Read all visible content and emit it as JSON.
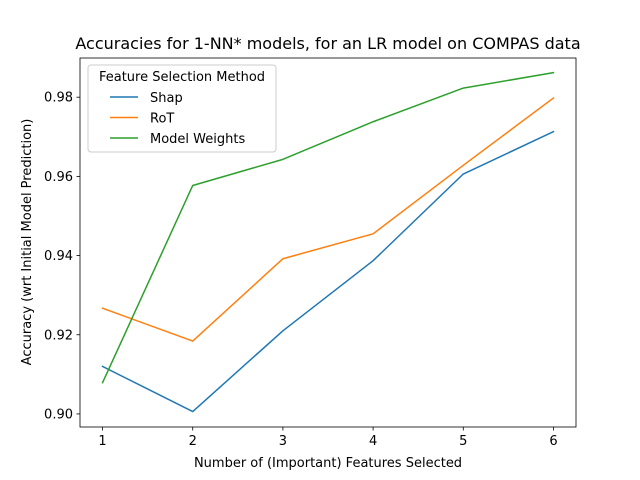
{
  "chart_data": {
    "type": "line",
    "title": "Accuracies for 1-NN* models, for an LR model on COMPAS data",
    "xlabel": "Number of (Important) Features Selected",
    "ylabel": "Accuracy (wrt Initial Model Prediction)",
    "x": [
      1,
      2,
      3,
      4,
      5,
      6
    ],
    "xticks": [
      "1",
      "2",
      "3",
      "4",
      "5",
      "6"
    ],
    "yticks": [
      0.9,
      0.92,
      0.94,
      0.96,
      0.98
    ],
    "ytick_labels": [
      "0.90",
      "0.92",
      "0.94",
      "0.96",
      "0.98"
    ],
    "xlim": [
      0.75,
      6.25
    ],
    "ylim": [
      0.8967,
      0.9899
    ],
    "grid": false,
    "legend": {
      "title": "Feature Selection Method",
      "placement": "top-left"
    },
    "series": [
      {
        "name": "Shap",
        "color": "#1f77b4",
        "values": [
          0.912,
          0.9006,
          0.921,
          0.9387,
          0.9606,
          0.9713
        ]
      },
      {
        "name": "RoT",
        "color": "#ff7f0e",
        "values": [
          0.9267,
          0.9184,
          0.9392,
          0.9455,
          0.9628,
          0.9798
        ]
      },
      {
        "name": "Model Weights",
        "color": "#2ca02c",
        "values": [
          0.9079,
          0.9577,
          0.9643,
          0.9738,
          0.9823,
          0.9862
        ]
      }
    ]
  }
}
